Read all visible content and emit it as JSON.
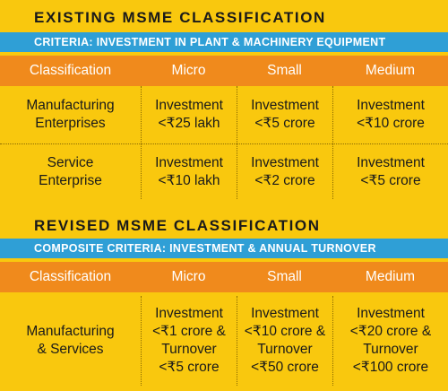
{
  "existing": {
    "title": "EXISTING MSME CLASSIFICATION",
    "criteria": "CRITERIA: INVESTMENT IN PLANT & MACHINERY EQUIPMENT",
    "headers": [
      "Classification",
      "Micro",
      "Small",
      "Medium"
    ],
    "rows": [
      {
        "label": [
          "Manufacturing",
          "Enterprises"
        ],
        "cells": [
          [
            "Investment",
            "<₹25 lakh"
          ],
          [
            "Investment",
            "<₹5 crore"
          ],
          [
            "Investment",
            "<₹10 crore"
          ]
        ]
      },
      {
        "label": [
          "Service",
          "Enterprise"
        ],
        "cells": [
          [
            "Investment",
            "<₹10 lakh"
          ],
          [
            "Investment",
            "<₹2 crore"
          ],
          [
            "Investment",
            "<₹5 crore"
          ]
        ]
      }
    ]
  },
  "revised": {
    "title": "REVISED MSME CLASSIFICATION",
    "criteria": "COMPOSITE CRITERIA: INVESTMENT & ANNUAL TURNOVER",
    "headers": [
      "Classification",
      "Micro",
      "Small",
      "Medium"
    ],
    "rows": [
      {
        "label": [
          "Manufacturing",
          "& Services"
        ],
        "cells": [
          [
            "Investment",
            "<₹1 crore &",
            "Turnover",
            "<₹5 crore"
          ],
          [
            "Investment",
            "<₹10 crore &",
            "Turnover",
            "<₹50 crore"
          ],
          [
            "Investment",
            "<₹20 crore &",
            "Turnover",
            "<₹100 crore"
          ]
        ]
      }
    ]
  },
  "colors": {
    "background": "#f9c80e",
    "criteria_bar": "#2f9fd6",
    "header_bar": "#f08a1c",
    "text": "#1a1a1a"
  }
}
